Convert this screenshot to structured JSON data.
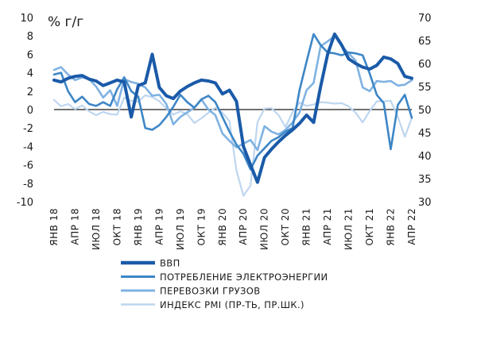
{
  "chart_data": {
    "type": "line",
    "y_unit_label": "% г/г",
    "y_left": {
      "min": -10,
      "max": 10,
      "ticks": [
        10,
        8,
        6,
        4,
        2,
        0,
        -2,
        -4,
        -6,
        -8,
        -10
      ]
    },
    "y_right": {
      "min": 30,
      "max": 70,
      "ticks": [
        70,
        65,
        60,
        55,
        50,
        45,
        40,
        35,
        30
      ]
    },
    "x_tick_labels": [
      "ЯНВ 18",
      "АПР 18",
      "ИЮЛ 18",
      "ОКТ 18",
      "ЯНВ 19",
      "АПР 19",
      "ИЮЛ 19",
      "ОКТ 19",
      "ЯНВ 20",
      "АПР 20",
      "ИЮЛ 20",
      "ОКТ 20",
      "ЯНВ 21",
      "АПР 21",
      "ИЮЛ 21",
      "ОКТ 21",
      "ЯНВ 22",
      "АПР 22"
    ],
    "n_points": 52,
    "series": [
      {
        "name": "ВВП",
        "axis": "left",
        "color": "#1a5aa8",
        "width": 4,
        "values": [
          3.2,
          3.0,
          3.4,
          3.6,
          3.7,
          3.3,
          3.1,
          2.6,
          2.9,
          3.2,
          3.0,
          -0.8,
          2.6,
          2.9,
          6.0,
          2.4,
          1.5,
          1.2,
          2.0,
          2.5,
          2.9,
          3.2,
          3.1,
          2.9,
          1.7,
          2.1,
          0.9,
          -4.0,
          -6.0,
          -7.9,
          -5.2,
          -4.3,
          -3.5,
          -2.8,
          -2.2,
          -1.5,
          -0.6,
          -1.4,
          2.5,
          6.0,
          8.2,
          7.0,
          5.5,
          5.0,
          4.6,
          4.4,
          4.8,
          5.7,
          5.5,
          5.0,
          3.6,
          3.4
        ]
      },
      {
        "name": "ПОТРЕБЛЕНИЕ ЭЛЕКТРОЭНЕРГИИ",
        "axis": "left",
        "color": "#3d86c6",
        "width": 2.6,
        "values": [
          3.8,
          4.0,
          2.0,
          0.8,
          1.4,
          0.6,
          0.4,
          0.8,
          0.4,
          2.2,
          3.5,
          2.0,
          1.4,
          -2.0,
          -2.2,
          -1.7,
          -0.8,
          0.3,
          1.6,
          0.8,
          0.2,
          1.1,
          1.5,
          0.8,
          -0.8,
          -2.4,
          -3.8,
          -4.8,
          -6.5,
          -5.0,
          -4.2,
          -3.4,
          -3.0,
          -2.4,
          -2.0,
          2.1,
          5.2,
          8.2,
          7.0,
          6.2,
          6.1,
          5.9,
          6.2,
          6.1,
          5.9,
          3.9,
          1.6,
          0.7,
          -4.3,
          0.5,
          1.6,
          -0.9
        ]
      },
      {
        "name": "ПЕРЕВОЗКИ ГРУЗОВ",
        "axis": "left",
        "color": "#7fb2e2",
        "width": 2.6,
        "values": [
          4.3,
          4.6,
          3.8,
          3.2,
          3.5,
          3.3,
          2.5,
          1.3,
          2.1,
          0.4,
          3.3,
          3.0,
          2.8,
          2.4,
          1.5,
          1.6,
          0.6,
          -1.6,
          -0.8,
          -0.3,
          0.2,
          1.1,
          0.0,
          -0.6,
          -2.6,
          -3.4,
          -4.1,
          -3.7,
          -3.3,
          -4.4,
          -1.8,
          -2.4,
          -2.7,
          -2.2,
          -1.4,
          -0.3,
          2.1,
          2.9,
          6.9,
          7.4,
          8.0,
          6.9,
          6.1,
          5.3,
          2.4,
          2.0,
          3.1,
          3.0,
          3.1,
          2.6,
          2.7,
          3.2
        ]
      },
      {
        "name": "ИНДЕКС PMI (ПР-ТЬ, ПР.ШК.)",
        "axis": "right",
        "color": "#bed6ef",
        "width": 2.2,
        "values": [
          52.1,
          50.7,
          51.2,
          50.1,
          50.9,
          49.6,
          48.8,
          49.5,
          49.0,
          48.9,
          52.6,
          51.9,
          51.7,
          53.1,
          52.7,
          51.8,
          50.3,
          48.9,
          49.6,
          49.0,
          47.1,
          48.1,
          49.3,
          50.4,
          49.3,
          47.5,
          36.8,
          31.3,
          33.5,
          47.3,
          50.2,
          50.3,
          48.8,
          46.2,
          49.4,
          51.5,
          50.8,
          51.1,
          51.6,
          51.5,
          51.3,
          51.4,
          50.7,
          49.3,
          47.2,
          49.7,
          51.8,
          51.8,
          51.9,
          48.4,
          44.1,
          48.2
        ]
      }
    ],
    "legend": {
      "position": "bottom-left",
      "items": [
        "ВВП",
        "ПОТРЕБЛЕНИЕ ЭЛЕКТРОЭНЕРГИИ",
        "ПЕРЕВОЗКИ ГРУЗОВ",
        "ИНДЕКС PMI (ПР-ТЬ, ПР.ШК.)"
      ]
    },
    "grid": false,
    "zero_line": true
  }
}
